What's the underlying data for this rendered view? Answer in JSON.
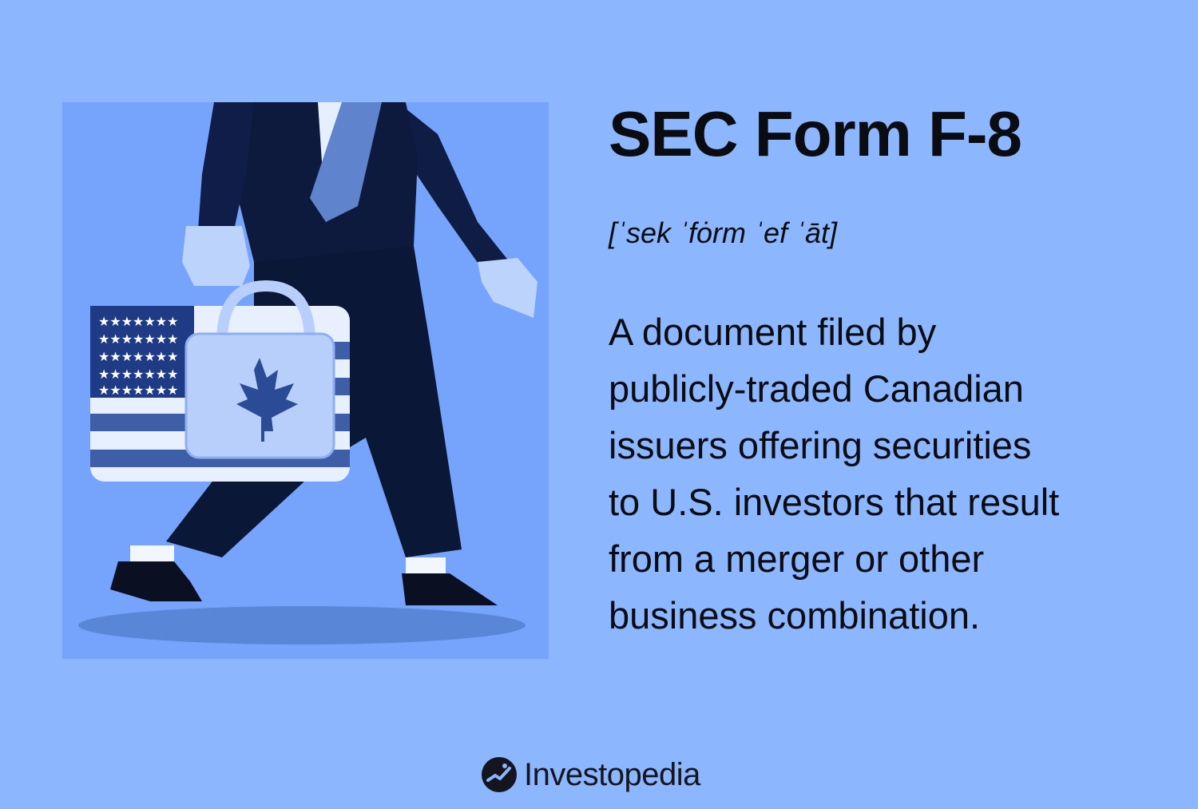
{
  "title": "SEC Form F-8",
  "pronunciation": "[ˈsek ˈfȯrm ˈef ˈāt]",
  "definition_lines": [
    "A document filed by",
    "publicly-traded Canadian",
    "issuers offering securities",
    "to U.S. investors that result",
    "from a merger or other",
    "business combination."
  ],
  "brand": {
    "name": "Investopedia"
  },
  "colors": {
    "background": "#8cb6fd",
    "illustration_bg": "#76a3fb",
    "suit": "#0d1a3d",
    "text": "#0b0b12"
  },
  "illustration_icon": "businessman-carrying-us-and-canada-briefcases"
}
